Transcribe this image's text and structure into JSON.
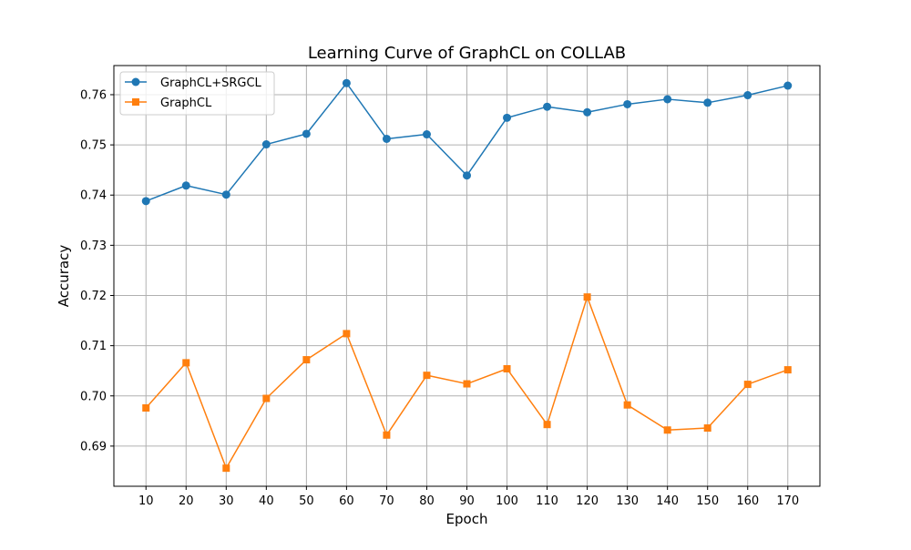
{
  "chart_data": {
    "type": "line",
    "title": "Learning Curve of GraphCL on COLLAB",
    "xlabel": "Epoch",
    "ylabel": "Accuracy",
    "x": [
      10,
      20,
      30,
      40,
      50,
      60,
      70,
      80,
      90,
      100,
      110,
      120,
      130,
      140,
      150,
      160,
      170
    ],
    "xlim": [
      2,
      178
    ],
    "ylim": [
      0.682,
      0.7658
    ],
    "yticks": [
      0.69,
      0.7,
      0.71,
      0.72,
      0.73,
      0.74,
      0.75,
      0.76
    ],
    "ytick_labels": [
      "0.69",
      "0.70",
      "0.71",
      "0.72",
      "0.73",
      "0.74",
      "0.75",
      "0.76"
    ],
    "grid": true,
    "legend_position": "top-left",
    "series": [
      {
        "name": "GraphCL+SRGCL",
        "color": "#1f77b4",
        "marker": "circle",
        "values": [
          0.7388,
          0.7419,
          0.7401,
          0.7501,
          0.7522,
          0.7623,
          0.7512,
          0.7521,
          0.7439,
          0.7554,
          0.7576,
          0.7565,
          0.7581,
          0.7591,
          0.7584,
          0.7599,
          0.7618
        ]
      },
      {
        "name": "GraphCL",
        "color": "#ff7f0e",
        "marker": "square",
        "values": [
          0.6976,
          0.7066,
          0.6856,
          0.6995,
          0.7072,
          0.7124,
          0.6922,
          0.7041,
          0.7024,
          0.7054,
          0.6943,
          0.7197,
          0.6982,
          0.6932,
          0.6936,
          0.7023,
          0.7052
        ]
      }
    ]
  }
}
